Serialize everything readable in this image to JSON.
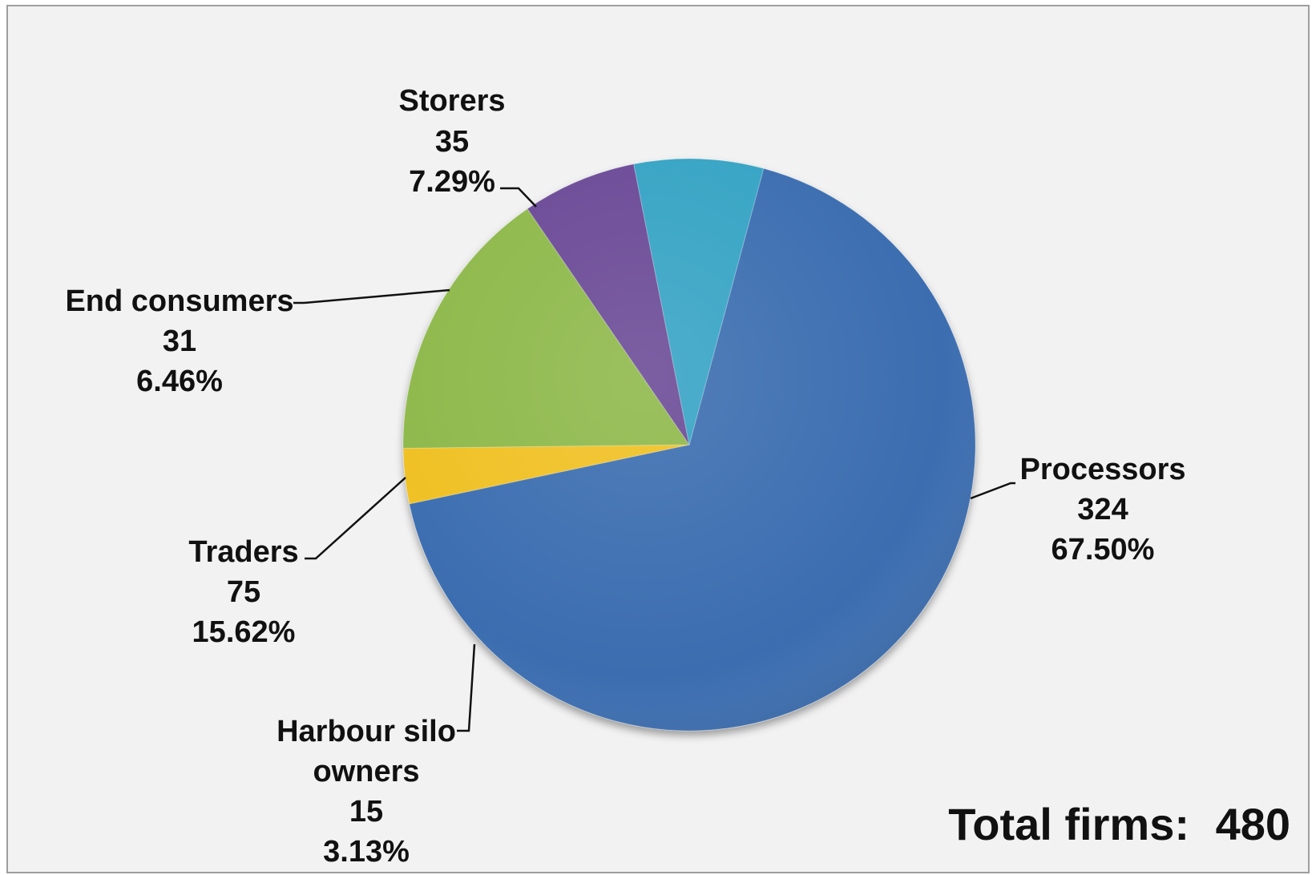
{
  "chart_data": {
    "type": "pie",
    "slices": [
      {
        "key": "processors",
        "label": "Processors",
        "count": "324",
        "percent": "67.50%",
        "value": 324,
        "color": "#3a6db0"
      },
      {
        "key": "harbour",
        "label_lines": [
          "Harbour silo",
          "owners"
        ],
        "count": "15",
        "percent": "3.13%",
        "value": 15,
        "color": "#f0c020"
      },
      {
        "key": "traders",
        "label": "Traders",
        "count": "75",
        "percent": "15.62%",
        "value": 75,
        "color": "#8db84a"
      },
      {
        "key": "endconsumers",
        "label": "End consumers",
        "count": "31",
        "percent": "6.46%",
        "value": 31,
        "color": "#6a4a96"
      },
      {
        "key": "storers",
        "label": "Storers",
        "count": "35",
        "percent": "7.29%",
        "value": 35,
        "color": "#35a3c4"
      }
    ],
    "total_label": "Total firms:",
    "total_value": "480"
  }
}
